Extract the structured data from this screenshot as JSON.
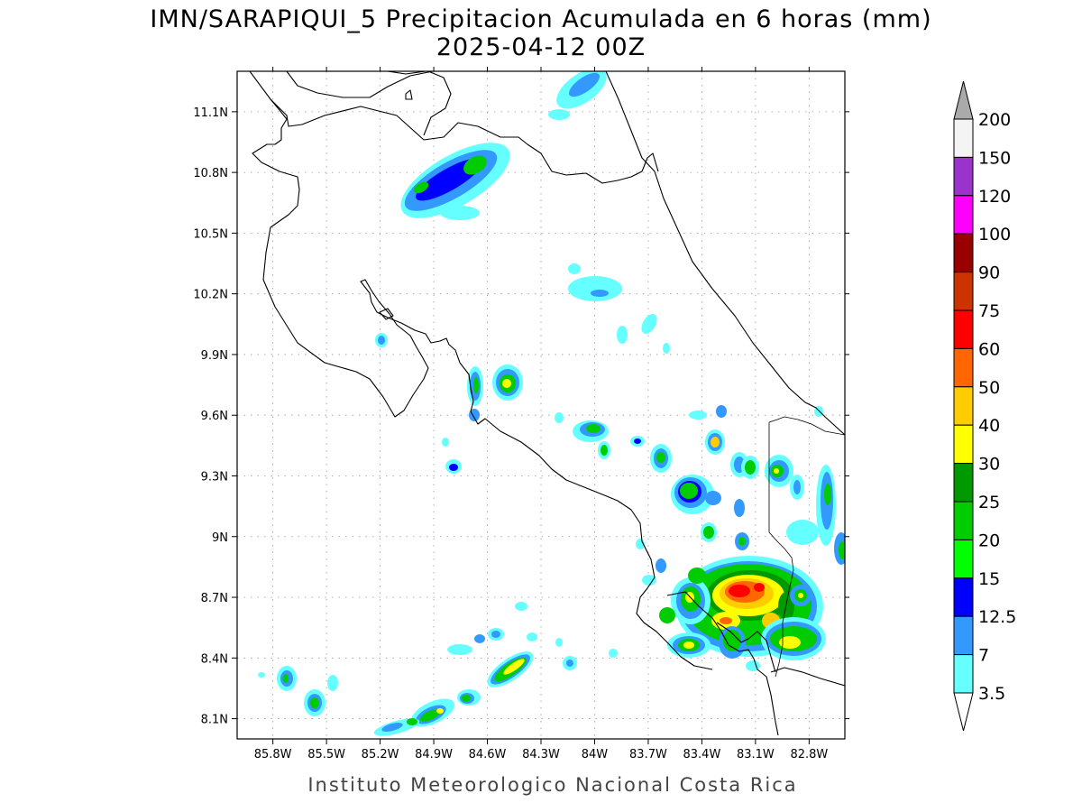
{
  "title": {
    "line1": "IMN/SARAPIQUI_5 Precipitacion Acumulada en 6 horas (mm)",
    "line2": "2025-04-12 00Z"
  },
  "footer": "Instituto Meteorologico Nacional Costa Rica",
  "map": {
    "lon_range": [
      -86.0,
      -82.6
    ],
    "lat_range": [
      8.0,
      11.3
    ],
    "lon_ticks": [
      "85.8W",
      "85.5W",
      "85.2W",
      "84.9W",
      "84.6W",
      "84.3W",
      "84W",
      "83.7W",
      "83.4W",
      "83.1W",
      "82.8W"
    ],
    "lat_ticks": [
      "8.1N",
      "8.4N",
      "8.7N",
      "9N",
      "9.3N",
      "9.6N",
      "9.9N",
      "10.2N",
      "10.5N",
      "10.8N",
      "11.1N"
    ],
    "grid": true
  },
  "colorbar": {
    "levels": [
      "3.5",
      "7",
      "12.5",
      "15",
      "20",
      "25",
      "30",
      "40",
      "50",
      "60",
      "75",
      "90",
      "100",
      "120",
      "150",
      "200"
    ],
    "colors": [
      "#66ffff",
      "#3399ff",
      "#0000ff",
      "#00ff00",
      "#00cc00",
      "#009900",
      "#ffff00",
      "#ffcc00",
      "#ff6600",
      "#ff0000",
      "#cc3300",
      "#990000",
      "#ff00ff",
      "#9933cc",
      "#f4f4f4"
    ],
    "over_color": "#aaaaaa",
    "under_color": "#ffffff"
  }
}
